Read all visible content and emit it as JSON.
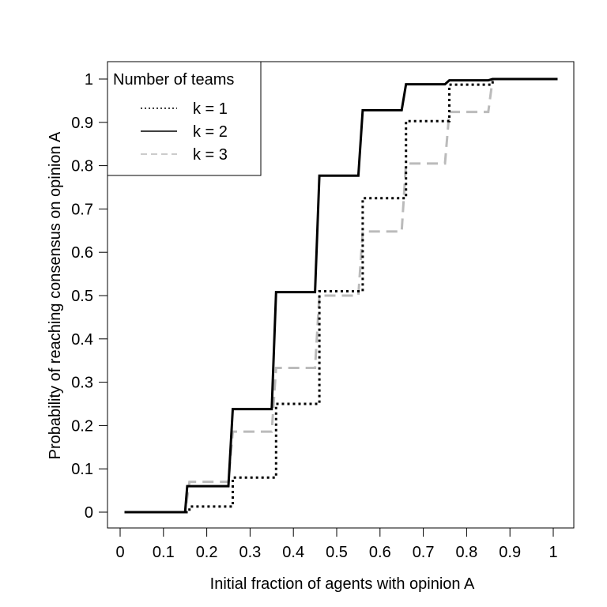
{
  "chart_data": {
    "type": "line",
    "xlabel": "Initial fraction of agents with opinion A",
    "ylabel": "Probability of reaching consensus on opinion A",
    "xlim": [
      0,
      1
    ],
    "ylim": [
      0,
      1
    ],
    "x_ticks": [
      "0",
      "0.1",
      "0.2",
      "0.3",
      "0.4",
      "0.5",
      "0.6",
      "0.7",
      "0.8",
      "0.9",
      "1"
    ],
    "y_ticks": [
      "0",
      "0.1",
      "0.2",
      "0.3",
      "0.4",
      "0.5",
      "0.6",
      "0.7",
      "0.8",
      "0.9",
      "1"
    ],
    "grid": false,
    "legend": {
      "title": "Number of teams",
      "placement": "top-left",
      "entries": [
        "k = 1",
        "k = 2",
        "k = 3"
      ]
    },
    "series": [
      {
        "name": "k = 1",
        "color": "#000000",
        "style": "dotted",
        "points": [
          [
            0.01,
            0.0
          ],
          [
            0.16,
            0.0
          ],
          [
            0.16,
            0.013
          ],
          [
            0.26,
            0.013
          ],
          [
            0.26,
            0.08
          ],
          [
            0.36,
            0.08
          ],
          [
            0.36,
            0.25
          ],
          [
            0.46,
            0.25
          ],
          [
            0.46,
            0.51
          ],
          [
            0.56,
            0.51
          ],
          [
            0.56,
            0.725
          ],
          [
            0.66,
            0.725
          ],
          [
            0.66,
            0.903
          ],
          [
            0.76,
            0.903
          ],
          [
            0.76,
            0.987
          ],
          [
            0.86,
            0.987
          ],
          [
            0.86,
            1.0
          ],
          [
            1.01,
            1.0
          ]
        ]
      },
      {
        "name": "k = 2",
        "color": "#000000",
        "style": "solid",
        "points": [
          [
            0.01,
            0.0
          ],
          [
            0.15,
            0.0
          ],
          [
            0.155,
            0.06
          ],
          [
            0.25,
            0.06
          ],
          [
            0.26,
            0.238
          ],
          [
            0.35,
            0.238
          ],
          [
            0.36,
            0.508
          ],
          [
            0.45,
            0.508
          ],
          [
            0.46,
            0.777
          ],
          [
            0.55,
            0.777
          ],
          [
            0.56,
            0.928
          ],
          [
            0.65,
            0.928
          ],
          [
            0.66,
            0.988
          ],
          [
            0.75,
            0.988
          ],
          [
            0.76,
            0.997
          ],
          [
            0.85,
            0.997
          ],
          [
            0.86,
            1.0
          ],
          [
            1.01,
            1.0
          ]
        ]
      },
      {
        "name": "k = 3",
        "color": "#bbbbbb",
        "style": "dashed",
        "points": [
          [
            0.01,
            0.0
          ],
          [
            0.15,
            0.0
          ],
          [
            0.16,
            0.07
          ],
          [
            0.25,
            0.07
          ],
          [
            0.26,
            0.186
          ],
          [
            0.35,
            0.186
          ],
          [
            0.36,
            0.333
          ],
          [
            0.45,
            0.333
          ],
          [
            0.46,
            0.5
          ],
          [
            0.55,
            0.5
          ],
          [
            0.56,
            0.648
          ],
          [
            0.65,
            0.648
          ],
          [
            0.66,
            0.805
          ],
          [
            0.75,
            0.805
          ],
          [
            0.76,
            0.924
          ],
          [
            0.85,
            0.924
          ],
          [
            0.86,
            1.0
          ],
          [
            1.01,
            1.0
          ]
        ]
      }
    ]
  }
}
